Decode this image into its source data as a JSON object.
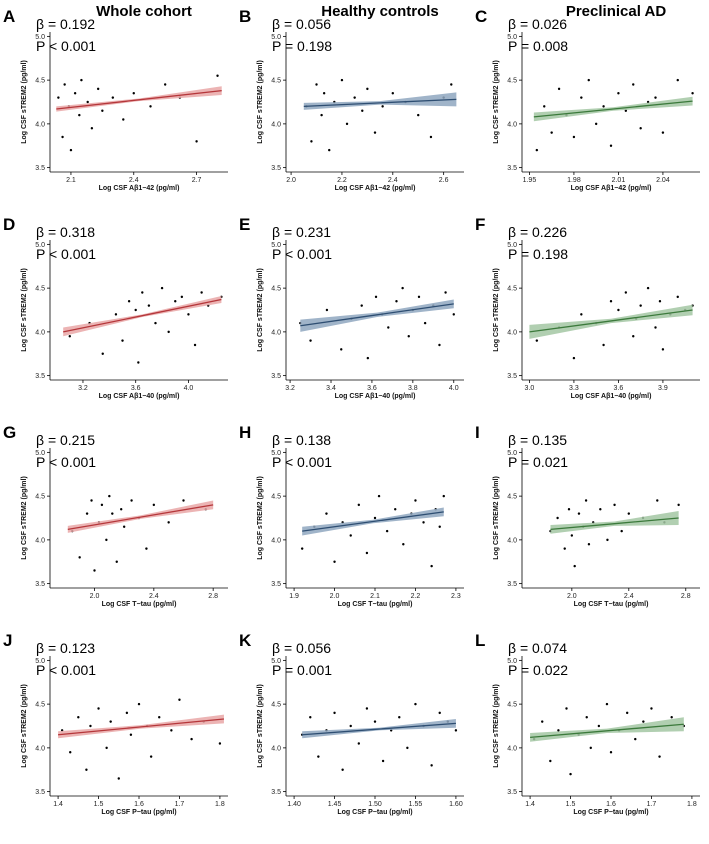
{
  "chart_data": [
    {
      "type": "scatter",
      "panel_label": "A",
      "title": "Whole cohort",
      "annotations": [
        "β = 0.192",
        "P < 0.001"
      ],
      "xlabel": "Log CSF Aβ1−42 (pg/ml)",
      "ylabel": "Log CSF sTREM2 (pg/ml)",
      "xlim": [
        2.0,
        2.85
      ],
      "xticks": [
        2.1,
        2.4,
        2.7
      ],
      "ylim": [
        3.45,
        5.05
      ],
      "yticks": [
        3.5,
        {
          "value": 4,
          "label": "4.0"
        },
        4.5,
        {
          "value": 5,
          "label": "5.0"
        }
      ],
      "point_color": "#000000",
      "fit_color": "#b5373b",
      "band_color": "#e9a7a7",
      "x": [
        2.04,
        2.06,
        2.07,
        2.09,
        2.1,
        2.12,
        2.14,
        2.15,
        2.18,
        2.2,
        2.23,
        2.25,
        2.3,
        2.35,
        2.4,
        2.48,
        2.55,
        2.62,
        2.7,
        2.8
      ],
      "y": [
        4.3,
        3.85,
        4.45,
        4.2,
        3.7,
        4.35,
        4.1,
        4.5,
        4.25,
        3.95,
        4.4,
        4.15,
        4.3,
        4.05,
        4.35,
        4.2,
        4.45,
        4.3,
        3.8,
        4.55
      ],
      "fit_x": [
        2.03,
        2.425,
        2.82
      ],
      "fit_y": [
        4.17,
        4.275,
        4.38
      ],
      "ci_lower": [
        4.14,
        4.26,
        4.33
      ],
      "ci_upper": [
        4.2,
        4.29,
        4.43
      ]
    },
    {
      "type": "scatter",
      "panel_label": "B",
      "title": "Healthy controls",
      "annotations": [
        "β = 0.056",
        "P = 0.198"
      ],
      "xlabel": "Log CSF Aβ1−42 (pg/ml)",
      "ylabel": "Log CSF sTREM2 (pg/ml)",
      "xlim": [
        1.98,
        2.68
      ],
      "xticks": [
        {
          "value": 2,
          "label": "2.0"
        },
        2.2,
        2.4,
        2.6
      ],
      "ylim": [
        3.45,
        5.05
      ],
      "yticks": [
        3.5,
        {
          "value": 4,
          "label": "4.0"
        },
        4.5,
        {
          "value": 5,
          "label": "5.0"
        }
      ],
      "point_color": "#000000",
      "fit_color": "#2e4e72",
      "band_color": "#8fa7c0",
      "x": [
        2.06,
        2.08,
        2.1,
        2.12,
        2.13,
        2.15,
        2.17,
        2.2,
        2.22,
        2.25,
        2.28,
        2.3,
        2.33,
        2.36,
        2.4,
        2.45,
        2.5,
        2.55,
        2.6,
        2.63
      ],
      "y": [
        4.2,
        3.8,
        4.45,
        4.1,
        4.35,
        3.7,
        4.25,
        4.5,
        4.0,
        4.3,
        4.15,
        4.4,
        3.9,
        4.2,
        4.35,
        4.25,
        4.1,
        3.85,
        4.3,
        4.45
      ],
      "fit_x": [
        2.05,
        2.35,
        2.65
      ],
      "fit_y": [
        4.2,
        4.24,
        4.28
      ],
      "ci_lower": [
        4.16,
        4.22,
        4.2
      ],
      "ci_upper": [
        4.24,
        4.26,
        4.36
      ]
    },
    {
      "type": "scatter",
      "panel_label": "C",
      "title": "Preclinical AD",
      "annotations": [
        "β = 0.026",
        "P = 0.008"
      ],
      "xlabel": "Log CSF Aβ1−42 (pg/ml)",
      "ylabel": "Log CSF sTREM2 (pg/ml)",
      "xlim": [
        1.945,
        2.065
      ],
      "xticks": [
        1.95,
        1.98,
        2.01,
        2.04
      ],
      "ylim": [
        3.45,
        5.05
      ],
      "yticks": [
        3.5,
        {
          "value": 4,
          "label": "4.0"
        },
        4.5,
        {
          "value": 5,
          "label": "5.0"
        }
      ],
      "point_color": "#000000",
      "fit_color": "#3c7a3c",
      "band_color": "#a3c7a3",
      "x": [
        1.955,
        1.96,
        1.965,
        1.97,
        1.975,
        1.98,
        1.985,
        1.99,
        1.995,
        2.0,
        2.005,
        2.01,
        2.015,
        2.02,
        2.025,
        2.03,
        2.035,
        2.04,
        2.05,
        2.06
      ],
      "y": [
        3.7,
        4.2,
        3.9,
        4.4,
        4.1,
        3.85,
        4.3,
        4.5,
        4.0,
        4.2,
        3.75,
        4.35,
        4.15,
        4.45,
        3.95,
        4.25,
        4.3,
        3.9,
        4.5,
        4.35
      ],
      "fit_x": [
        1.953,
        2.0065,
        2.06
      ],
      "fit_y": [
        4.08,
        4.17,
        4.26
      ],
      "ci_lower": [
        4.03,
        4.15,
        4.21
      ],
      "ci_upper": [
        4.13,
        4.19,
        4.31
      ]
    },
    {
      "type": "scatter",
      "panel_label": "D",
      "annotations": [
        "β = 0.318",
        "P < 0.001"
      ],
      "xlabel": "Log CSF Aβ1−40 (pg/ml)",
      "ylabel": "Log CSF sTREM2 (pg/ml)",
      "xlim": [
        2.95,
        4.3
      ],
      "xticks": [
        3.2,
        3.6,
        {
          "value": 4,
          "label": "4.0"
        }
      ],
      "ylim": [
        3.45,
        5.05
      ],
      "yticks": [
        3.5,
        {
          "value": 4,
          "label": "4.0"
        },
        4.5,
        {
          "value": 5,
          "label": "5.0"
        }
      ],
      "point_color": "#000000",
      "fit_color": "#b5373b",
      "band_color": "#e9a7a7",
      "x": [
        3.1,
        3.25,
        3.35,
        3.45,
        3.5,
        3.55,
        3.6,
        3.62,
        3.65,
        3.7,
        3.75,
        3.8,
        3.85,
        3.9,
        3.95,
        4.0,
        4.05,
        4.1,
        4.15,
        4.25
      ],
      "y": [
        3.95,
        4.1,
        3.75,
        4.2,
        3.9,
        4.35,
        4.25,
        3.65,
        4.45,
        4.3,
        4.1,
        4.5,
        4.0,
        4.35,
        4.4,
        4.2,
        3.85,
        4.45,
        4.3,
        4.4
      ],
      "fit_x": [
        3.05,
        3.65,
        4.25
      ],
      "fit_y": [
        4.0,
        4.185,
        4.37
      ],
      "ci_lower": [
        3.95,
        4.17,
        4.33
      ],
      "ci_upper": [
        4.05,
        4.2,
        4.41
      ]
    },
    {
      "type": "scatter",
      "panel_label": "E",
      "annotations": [
        "β = 0.231",
        "P < 0.001"
      ],
      "xlabel": "Log CSF Aβ1−40 (pg/ml)",
      "ylabel": "Log CSF sTREM2 (pg/ml)",
      "xlim": [
        3.18,
        4.05
      ],
      "xticks": [
        3.2,
        3.4,
        3.6,
        3.8,
        {
          "value": 4,
          "label": "4.0"
        }
      ],
      "ylim": [
        3.45,
        5.05
      ],
      "yticks": [
        3.5,
        {
          "value": 4,
          "label": "4.0"
        },
        4.5,
        {
          "value": 5,
          "label": "5.0"
        }
      ],
      "point_color": "#000000",
      "fit_color": "#2e4e72",
      "band_color": "#8fa7c0",
      "x": [
        3.25,
        3.3,
        3.38,
        3.45,
        3.5,
        3.55,
        3.58,
        3.62,
        3.65,
        3.68,
        3.72,
        3.75,
        3.78,
        3.8,
        3.83,
        3.86,
        3.9,
        3.93,
        3.96,
        4.0
      ],
      "y": [
        4.1,
        3.9,
        4.25,
        3.8,
        4.15,
        4.3,
        3.7,
        4.4,
        4.2,
        4.05,
        4.35,
        4.5,
        3.95,
        4.25,
        4.4,
        4.1,
        4.3,
        3.85,
        4.45,
        4.2
      ],
      "fit_x": [
        3.25,
        3.625,
        4.0
      ],
      "fit_y": [
        4.07,
        4.195,
        4.32
      ],
      "ci_lower": [
        4.0,
        4.17,
        4.27
      ],
      "ci_upper": [
        4.14,
        4.22,
        4.37
      ]
    },
    {
      "type": "scatter",
      "panel_label": "F",
      "annotations": [
        "β = 0.226",
        "P = 0.198"
      ],
      "xlabel": "Log CSF Aβ1−40 (pg/ml)",
      "ylabel": "Log CSF sTREM2 (pg/ml)",
      "xlim": [
        2.95,
        4.15
      ],
      "xticks": [
        {
          "value": 3,
          "label": "3.0"
        },
        3.3,
        3.6,
        3.9
      ],
      "ylim": [
        3.45,
        5.05
      ],
      "yticks": [
        3.5,
        {
          "value": 4,
          "label": "4.0"
        },
        4.5,
        {
          "value": 5,
          "label": "5.0"
        }
      ],
      "point_color": "#000000",
      "fit_color": "#3c7a3c",
      "band_color": "#a3c7a3",
      "x": [
        3.05,
        3.2,
        3.3,
        3.35,
        3.45,
        3.5,
        3.55,
        3.6,
        3.65,
        3.7,
        3.72,
        3.75,
        3.8,
        3.85,
        3.88,
        3.9,
        3.95,
        4.0,
        4.05,
        4.1
      ],
      "y": [
        3.9,
        4.05,
        3.7,
        4.2,
        4.1,
        3.85,
        4.35,
        4.25,
        4.45,
        3.95,
        4.15,
        4.3,
        4.5,
        4.05,
        4.35,
        3.8,
        4.2,
        4.4,
        4.25,
        4.3
      ],
      "fit_x": [
        3.0,
        3.55,
        4.1
      ],
      "fit_y": [
        4.0,
        4.125,
        4.25
      ],
      "ci_lower": [
        3.92,
        4.1,
        4.19
      ],
      "ci_upper": [
        4.08,
        4.15,
        4.31
      ]
    },
    {
      "type": "scatter",
      "panel_label": "G",
      "annotations": [
        "β = 0.215",
        "P < 0.001"
      ],
      "xlabel": "Log CSF T−tau (pg/ml)",
      "ylabel": "Log CSF sTREM2 (pg/ml)",
      "xlim": [
        1.7,
        2.9
      ],
      "xticks": [
        {
          "value": 2,
          "label": "2.0"
        },
        2.4,
        2.8
      ],
      "ylim": [
        3.45,
        5.05
      ],
      "yticks": [
        3.5,
        {
          "value": 4,
          "label": "4.0"
        },
        4.5,
        {
          "value": 5,
          "label": "5.0"
        }
      ],
      "point_color": "#000000",
      "fit_color": "#b5373b",
      "band_color": "#e9a7a7",
      "x": [
        1.85,
        1.9,
        1.95,
        1.98,
        2.0,
        2.03,
        2.05,
        2.08,
        2.1,
        2.12,
        2.15,
        2.18,
        2.2,
        2.25,
        2.3,
        2.35,
        2.4,
        2.5,
        2.6,
        2.75
      ],
      "y": [
        4.1,
        3.8,
        4.3,
        4.45,
        3.65,
        4.2,
        4.4,
        4.0,
        4.5,
        4.3,
        3.75,
        4.35,
        4.15,
        4.45,
        4.25,
        3.9,
        4.4,
        4.2,
        4.45,
        4.35
      ],
      "fit_x": [
        1.82,
        2.31,
        2.8
      ],
      "fit_y": [
        4.12,
        4.26,
        4.4
      ],
      "ci_lower": [
        4.08,
        4.24,
        4.35
      ],
      "ci_upper": [
        4.16,
        4.28,
        4.45
      ]
    },
    {
      "type": "scatter",
      "panel_label": "H",
      "annotations": [
        "β = 0.138",
        "P < 0.001"
      ],
      "xlabel": "Log CSF T−tau (pg/ml)",
      "ylabel": "Log CSF sTREM2 (pg/ml)",
      "xlim": [
        1.88,
        2.32
      ],
      "xticks": [
        1.9,
        {
          "value": 2,
          "label": "2.0"
        },
        2.1,
        2.2,
        2.3
      ],
      "ylim": [
        3.45,
        5.05
      ],
      "yticks": [
        3.5,
        {
          "value": 4,
          "label": "4.0"
        },
        4.5,
        {
          "value": 5,
          "label": "5.0"
        }
      ],
      "point_color": "#000000",
      "fit_color": "#2e4e72",
      "band_color": "#8fa7c0",
      "x": [
        1.92,
        1.95,
        1.98,
        2.0,
        2.02,
        2.04,
        2.06,
        2.08,
        2.1,
        2.11,
        2.13,
        2.15,
        2.17,
        2.19,
        2.2,
        2.22,
        2.24,
        2.25,
        2.26,
        2.27
      ],
      "y": [
        3.9,
        4.15,
        4.3,
        3.75,
        4.2,
        4.05,
        4.4,
        3.85,
        4.25,
        4.5,
        4.1,
        4.35,
        3.95,
        4.3,
        4.45,
        4.2,
        3.7,
        4.35,
        4.15,
        4.5
      ],
      "fit_x": [
        1.92,
        2.095,
        2.27
      ],
      "fit_y": [
        4.1,
        4.21,
        4.32
      ],
      "ci_lower": [
        4.05,
        4.19,
        4.27
      ],
      "ci_upper": [
        4.15,
        4.23,
        4.37
      ]
    },
    {
      "type": "scatter",
      "panel_label": "I",
      "annotations": [
        "β = 0.135",
        "P = 0.021"
      ],
      "xlabel": "Log CSF T−tau (pg/ml)",
      "ylabel": "Log CSF sTREM2 (pg/ml)",
      "xlim": [
        1.65,
        2.9
      ],
      "xticks": [
        {
          "value": 2,
          "label": "2.0"
        },
        2.4,
        2.8
      ],
      "ylim": [
        3.45,
        5.05
      ],
      "yticks": [
        3.5,
        {
          "value": 4,
          "label": "4.0"
        },
        4.5,
        {
          "value": 5,
          "label": "5.0"
        }
      ],
      "point_color": "#000000",
      "fit_color": "#3c7a3c",
      "band_color": "#a3c7a3",
      "x": [
        1.85,
        1.9,
        1.95,
        1.98,
        2.0,
        2.02,
        2.05,
        2.08,
        2.1,
        2.12,
        2.15,
        2.2,
        2.25,
        2.3,
        2.35,
        2.4,
        2.5,
        2.6,
        2.65,
        2.75
      ],
      "y": [
        4.1,
        4.25,
        3.9,
        4.35,
        4.05,
        3.7,
        4.3,
        4.15,
        4.45,
        3.95,
        4.2,
        4.35,
        4.0,
        4.4,
        4.1,
        4.3,
        4.25,
        4.45,
        4.2,
        4.4
      ],
      "fit_x": [
        1.85,
        2.3,
        2.75
      ],
      "fit_y": [
        4.12,
        4.185,
        4.25
      ],
      "ci_lower": [
        4.07,
        4.16,
        4.17
      ],
      "ci_upper": [
        4.17,
        4.21,
        4.33
      ]
    },
    {
      "type": "scatter",
      "panel_label": "J",
      "annotations": [
        "β = 0.123",
        "P < 0.001"
      ],
      "xlabel": "Log CSF P−tau (pg/ml)",
      "ylabel": "Log CSF sTREM2 (pg/ml)",
      "xlim": [
        1.38,
        1.82
      ],
      "xticks": [
        1.4,
        1.5,
        1.6,
        1.7,
        1.8
      ],
      "ylim": [
        3.45,
        5.05
      ],
      "yticks": [
        3.5,
        {
          "value": 4,
          "label": "4.0"
        },
        4.5,
        {
          "value": 5,
          "label": "5.0"
        }
      ],
      "point_color": "#000000",
      "fit_color": "#b5373b",
      "band_color": "#e9a7a7",
      "x": [
        1.41,
        1.43,
        1.45,
        1.47,
        1.48,
        1.5,
        1.52,
        1.53,
        1.55,
        1.57,
        1.58,
        1.6,
        1.62,
        1.63,
        1.65,
        1.68,
        1.7,
        1.73,
        1.76,
        1.8
      ],
      "y": [
        4.2,
        3.95,
        4.35,
        3.75,
        4.25,
        4.45,
        4.0,
        4.3,
        3.65,
        4.4,
        4.15,
        4.5,
        4.25,
        3.9,
        4.35,
        4.2,
        4.55,
        4.1,
        4.3,
        4.05
      ],
      "fit_x": [
        1.4,
        1.605,
        1.81
      ],
      "fit_y": [
        4.15,
        4.24,
        4.33
      ],
      "ci_lower": [
        4.11,
        4.22,
        4.28
      ],
      "ci_upper": [
        4.19,
        4.26,
        4.38
      ]
    },
    {
      "type": "scatter",
      "panel_label": "K",
      "annotations": [
        "β = 0.056",
        "P = 0.001"
      ],
      "xlabel": "Log CSF P−tau (pg/ml)",
      "ylabel": "Log CSF sTREM2 (pg/ml)",
      "xlim": [
        1.39,
        1.61
      ],
      "xticks": [
        {
          "value": 1.4,
          "label": "1.40"
        },
        1.45,
        {
          "value": 1.5,
          "label": "1.50"
        },
        1.55,
        {
          "value": 1.6,
          "label": "1.60"
        }
      ],
      "ylim": [
        3.45,
        5.05
      ],
      "yticks": [
        3.5,
        {
          "value": 4,
          "label": "4.0"
        },
        4.5,
        {
          "value": 5,
          "label": "5.0"
        }
      ],
      "point_color": "#000000",
      "fit_color": "#2e4e72",
      "band_color": "#8fa7c0",
      "x": [
        1.41,
        1.42,
        1.43,
        1.44,
        1.45,
        1.46,
        1.47,
        1.48,
        1.49,
        1.5,
        1.51,
        1.52,
        1.53,
        1.54,
        1.55,
        1.56,
        1.57,
        1.58,
        1.59,
        1.6
      ],
      "y": [
        4.15,
        4.35,
        3.9,
        4.2,
        4.4,
        3.75,
        4.25,
        4.05,
        4.45,
        4.3,
        3.85,
        4.2,
        4.35,
        4.0,
        4.5,
        4.25,
        3.8,
        4.4,
        4.3,
        4.2
      ],
      "fit_x": [
        1.41,
        1.505,
        1.6
      ],
      "fit_y": [
        4.15,
        4.215,
        4.28
      ],
      "ci_lower": [
        4.11,
        4.2,
        4.23
      ],
      "ci_upper": [
        4.19,
        4.23,
        4.33
      ]
    },
    {
      "type": "scatter",
      "panel_label": "L",
      "annotations": [
        "β = 0.074",
        "P = 0.022"
      ],
      "xlabel": "Log CSF P−tau (pg/ml)",
      "ylabel": "Log CSF sTREM2 (pg/ml)",
      "xlim": [
        1.38,
        1.82
      ],
      "xticks": [
        1.4,
        1.5,
        1.6,
        1.7,
        1.8
      ],
      "ylim": [
        3.45,
        5.05
      ],
      "yticks": [
        3.5,
        {
          "value": 4,
          "label": "4.0"
        },
        4.5,
        {
          "value": 5,
          "label": "5.0"
        }
      ],
      "point_color": "#000000",
      "fit_color": "#3c7a3c",
      "band_color": "#a3c7a3",
      "x": [
        1.41,
        1.43,
        1.45,
        1.47,
        1.49,
        1.5,
        1.52,
        1.54,
        1.55,
        1.57,
        1.59,
        1.6,
        1.62,
        1.64,
        1.66,
        1.68,
        1.7,
        1.72,
        1.75,
        1.78
      ],
      "y": [
        4.1,
        4.3,
        3.85,
        4.2,
        4.45,
        3.7,
        4.15,
        4.35,
        4.0,
        4.25,
        4.5,
        3.95,
        4.2,
        4.4,
        4.1,
        4.3,
        4.45,
        3.9,
        4.35,
        4.25
      ],
      "fit_x": [
        1.4,
        1.59,
        1.78
      ],
      "fit_y": [
        4.12,
        4.195,
        4.27
      ],
      "ci_lower": [
        4.07,
        4.17,
        4.19
      ],
      "ci_upper": [
        4.17,
        4.22,
        4.35
      ]
    }
  ]
}
